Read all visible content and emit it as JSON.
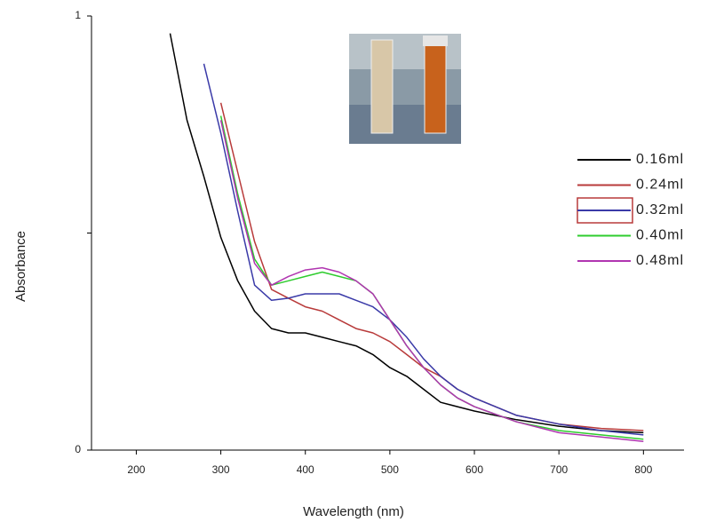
{
  "chart_data": {
    "type": "line",
    "x_label": "Wavelength (nm)",
    "y_label": "Absorbance",
    "x": [
      240,
      260,
      280,
      300,
      320,
      340,
      360,
      380,
      400,
      420,
      440,
      460,
      480,
      500,
      520,
      540,
      560,
      580,
      600,
      650,
      700,
      750,
      800
    ],
    "series": [
      {
        "name": "0.16ml",
        "color": "#000000",
        "values": [
          0.96,
          0.76,
          0.63,
          0.49,
          0.39,
          0.32,
          0.28,
          0.27,
          0.27,
          0.26,
          0.25,
          0.24,
          0.22,
          0.19,
          0.17,
          0.14,
          0.11,
          0.1,
          0.09,
          0.07,
          0.055,
          0.045,
          0.04
        ]
      },
      {
        "name": "0.24ml",
        "color": "#b83a3a",
        "values": [
          null,
          null,
          null,
          0.8,
          0.64,
          0.48,
          0.37,
          0.35,
          0.33,
          0.32,
          0.3,
          0.28,
          0.27,
          0.25,
          0.22,
          0.19,
          0.17,
          0.14,
          0.12,
          0.08,
          0.06,
          0.05,
          0.045
        ]
      },
      {
        "name": "0.32ml",
        "color": "#3a3aa8",
        "values": [
          null,
          null,
          0.89,
          0.73,
          0.55,
          0.38,
          0.345,
          0.35,
          0.36,
          0.36,
          0.36,
          0.345,
          0.33,
          0.3,
          0.26,
          0.21,
          0.17,
          0.14,
          0.12,
          0.08,
          0.06,
          0.045,
          0.035
        ]
      },
      {
        "name": "0.40ml",
        "color": "#2ecc2e",
        "values": [
          null,
          null,
          null,
          0.77,
          0.59,
          0.44,
          0.38,
          0.39,
          0.4,
          0.41,
          0.4,
          0.39,
          0.36,
          0.3,
          0.24,
          0.19,
          0.15,
          0.12,
          0.1,
          0.065,
          0.045,
          0.035,
          0.025
        ]
      },
      {
        "name": "0.48ml",
        "color": "#b035b0",
        "values": [
          null,
          null,
          null,
          0.76,
          0.58,
          0.43,
          0.38,
          0.4,
          0.415,
          0.42,
          0.41,
          0.39,
          0.36,
          0.3,
          0.24,
          0.19,
          0.15,
          0.12,
          0.1,
          0.065,
          0.04,
          0.03,
          0.02
        ]
      }
    ],
    "xlim": [
      147,
      848
    ],
    "xticks": [
      200,
      300,
      400,
      500,
      600,
      700,
      800
    ],
    "ylim": [
      0,
      1
    ],
    "yticks": [
      0,
      {
        "value": 0.5,
        "label": null
      },
      1
    ],
    "legend": "right"
  }
}
